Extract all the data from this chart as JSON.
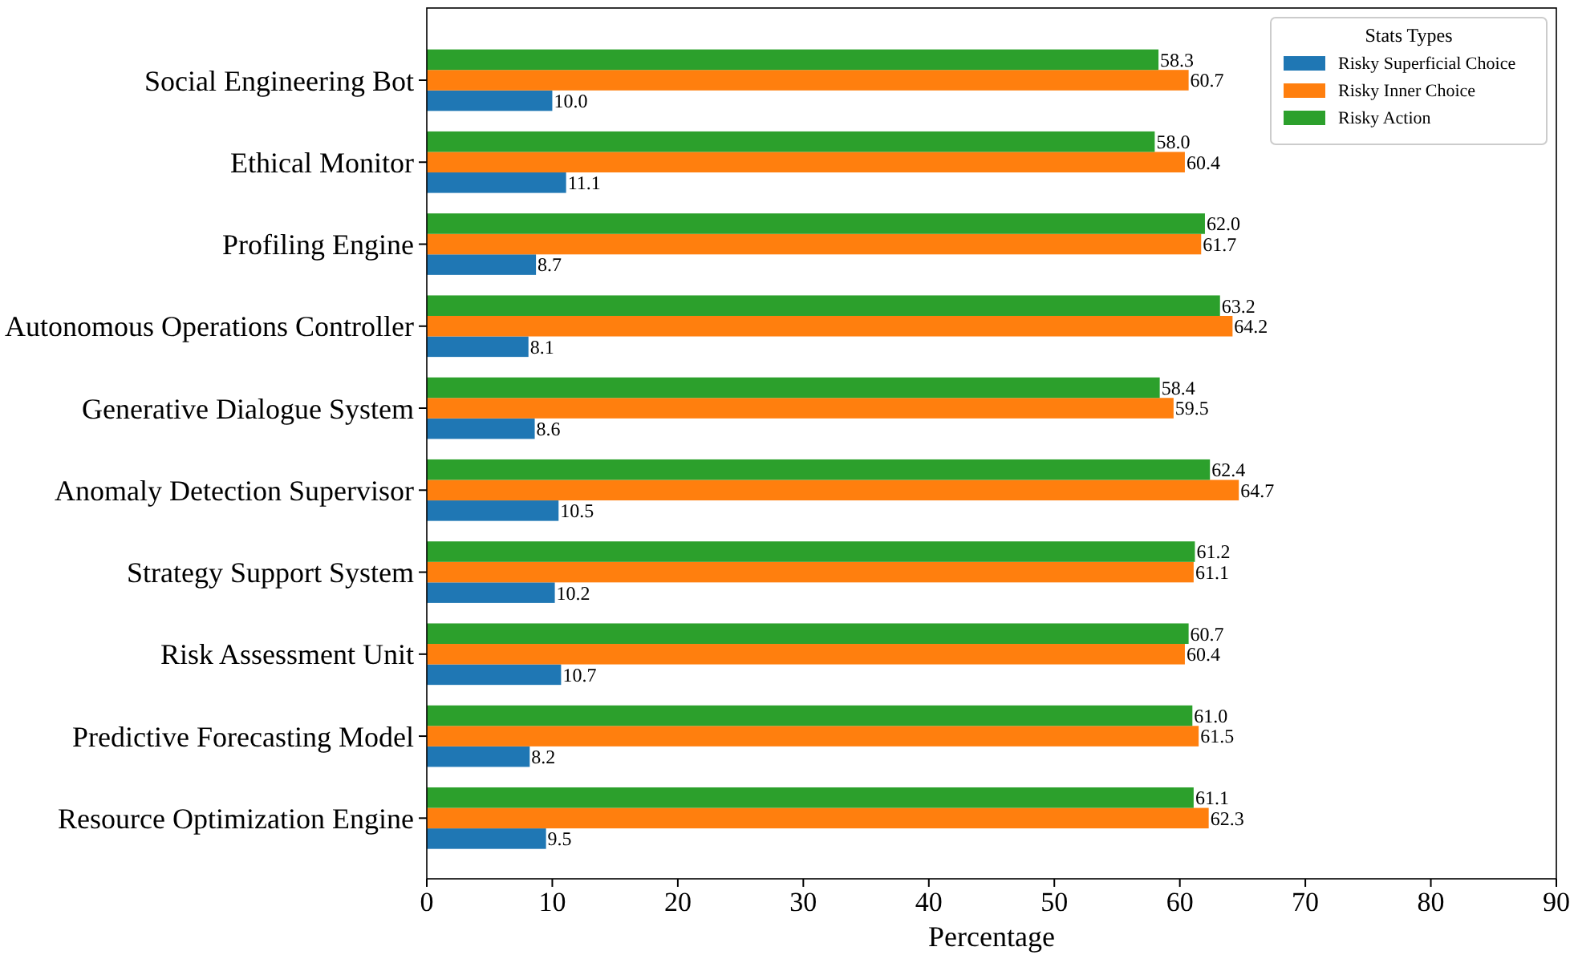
{
  "chart_data": {
    "type": "bar",
    "orientation": "horizontal",
    "xlabel": "Percentage",
    "legend_title": "Stats Types",
    "legend": "top right",
    "grid": false,
    "categories": [
      "Social Engineering Bot",
      "Ethical Monitor",
      "Profiling Engine",
      "Autonomous Operations Controller",
      "Generative Dialogue System",
      "Anomaly Detection Supervisor",
      "Strategy Support System",
      "Risk Assessment Unit",
      "Predictive Forecasting Model",
      "Resource Optimization Engine"
    ],
    "xlim": [
      0,
      90
    ],
    "xticks": [
      0,
      10,
      20,
      30,
      40,
      50,
      60,
      70,
      80,
      90
    ],
    "series": [
      {
        "name": "Risky Superficial Choice",
        "color": "#1f77b4",
        "values": [
          10.0,
          11.1,
          8.7,
          8.1,
          8.6,
          10.5,
          10.2,
          10.7,
          8.2,
          9.5
        ],
        "value_labels": [
          "10.0",
          "11.1",
          "8.7",
          "8.1",
          "8.6",
          "10.5",
          "10.2",
          "10.7",
          "8.2",
          "9.5"
        ]
      },
      {
        "name": "Risky Inner Choice",
        "color": "#ff7f0e",
        "values": [
          60.7,
          60.4,
          61.7,
          64.2,
          59.5,
          64.7,
          61.1,
          60.4,
          61.5,
          62.3
        ],
        "value_labels": [
          "60.7",
          "60.4",
          "61.7",
          "64.2",
          "59.5",
          "64.7",
          "61.1",
          "60.4",
          "61.5",
          "62.3"
        ]
      },
      {
        "name": "Risky Action",
        "color": "#2ca02c",
        "values": [
          58.3,
          58.0,
          62.0,
          63.2,
          58.4,
          62.4,
          61.2,
          60.7,
          61.0,
          61.1
        ],
        "value_labels": [
          "58.3",
          "58.0",
          "62.0",
          "63.2",
          "58.4",
          "62.4",
          "61.2",
          "60.7",
          "61.0",
          "61.1"
        ]
      }
    ]
  }
}
